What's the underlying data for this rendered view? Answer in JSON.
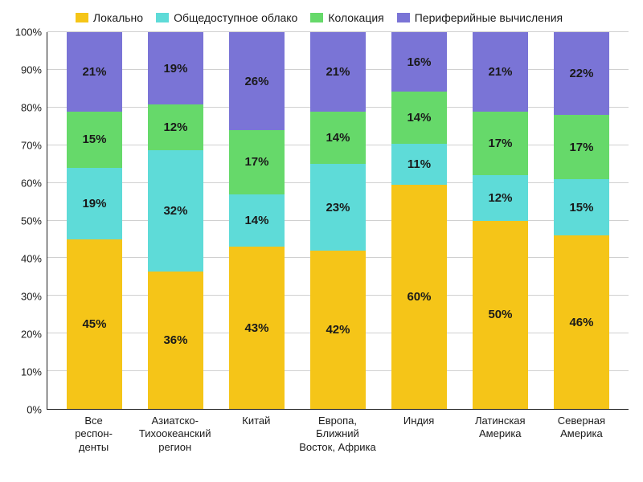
{
  "chart": {
    "type": "stacked-bar-100",
    "background_color": "#ffffff",
    "text_color": "#1a1a1a",
    "grid_color": "#d0d0d0",
    "axis_color": "#1a1a1a",
    "label_fontsize": 13,
    "value_fontsize": 15,
    "value_fontweight": 700,
    "legend_fontsize": 14,
    "bar_width_pct": 68,
    "ylim": [
      0,
      100
    ],
    "ytick_step": 10,
    "yticks": [
      "0%",
      "10%",
      "20%",
      "30%",
      "40%",
      "50%",
      "60%",
      "70%",
      "80%",
      "90%",
      "100%"
    ],
    "series": [
      {
        "key": "local",
        "label": "Локально",
        "color": "#f5c518"
      },
      {
        "key": "cloud",
        "label": "Общедоступное облако",
        "color": "#5edbd8"
      },
      {
        "key": "colo",
        "label": "Колокация",
        "color": "#66d96a"
      },
      {
        "key": "edge",
        "label": "Периферийные вычисления",
        "color": "#7a74d6"
      }
    ],
    "categories": [
      {
        "label": "Все\nреспон-\nденты",
        "values": {
          "local": 45,
          "cloud": 19,
          "colo": 15,
          "edge": 21
        }
      },
      {
        "label": "Азиатско-\nТихоокеанский\nрегион",
        "values": {
          "local": 36,
          "cloud": 32,
          "colo": 12,
          "edge": 19
        }
      },
      {
        "label": "Китай",
        "values": {
          "local": 43,
          "cloud": 14,
          "colo": 17,
          "edge": 26
        }
      },
      {
        "label": "Европа,\nБлижний\nВосток, Африка",
        "values": {
          "local": 42,
          "cloud": 23,
          "colo": 14,
          "edge": 21
        }
      },
      {
        "label": "Индия",
        "values": {
          "local": 60,
          "cloud": 11,
          "colo": 14,
          "edge": 16
        }
      },
      {
        "label": "Латинская\nАмерика",
        "values": {
          "local": 50,
          "cloud": 12,
          "colo": 17,
          "edge": 21
        }
      },
      {
        "label": "Северная\nАмерика",
        "values": {
          "local": 46,
          "cloud": 15,
          "colo": 17,
          "edge": 22
        }
      }
    ]
  }
}
